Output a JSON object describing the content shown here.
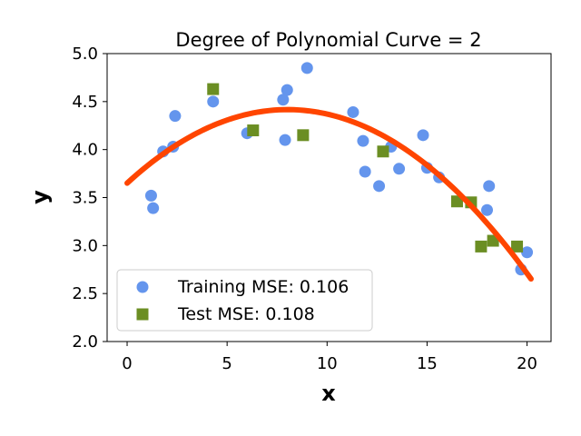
{
  "chart_data": {
    "type": "scatter",
    "title": "Degree of Polynomial Curve = 2",
    "xlabel": "x",
    "ylabel": "y",
    "xlim": [
      -1,
      21.2
    ],
    "ylim": [
      2.0,
      5.0
    ],
    "xticks": [
      "0",
      "5",
      "10",
      "15",
      "20"
    ],
    "yticks": [
      "2.0",
      "2.5",
      "3.0",
      "3.5",
      "4.0",
      "4.5",
      "5.0"
    ],
    "grid": false,
    "legend_position": "lower-left",
    "series": [
      {
        "name": "Training MSE: 0.106",
        "marker": "circle",
        "color": "#6495ed",
        "points": [
          [
            1.2,
            3.52
          ],
          [
            1.3,
            3.39
          ],
          [
            1.8,
            3.98
          ],
          [
            2.3,
            4.03
          ],
          [
            2.4,
            4.35
          ],
          [
            4.3,
            4.5
          ],
          [
            6.0,
            4.17
          ],
          [
            7.8,
            4.52
          ],
          [
            7.9,
            4.1
          ],
          [
            8.0,
            4.62
          ],
          [
            9.0,
            4.85
          ],
          [
            11.3,
            4.39
          ],
          [
            11.8,
            4.09
          ],
          [
            11.9,
            3.77
          ],
          [
            12.6,
            3.62
          ],
          [
            13.2,
            4.03
          ],
          [
            13.6,
            3.8
          ],
          [
            14.8,
            4.15
          ],
          [
            15.0,
            3.81
          ],
          [
            15.6,
            3.71
          ],
          [
            18.0,
            3.37
          ],
          [
            18.1,
            3.62
          ],
          [
            19.7,
            2.75
          ],
          [
            20.0,
            2.93
          ]
        ]
      },
      {
        "name": "Test MSE: 0.108",
        "marker": "square",
        "color": "#6b8e23",
        "points": [
          [
            4.3,
            4.63
          ],
          [
            6.3,
            4.2
          ],
          [
            8.8,
            4.15
          ],
          [
            12.8,
            3.98
          ],
          [
            16.5,
            3.46
          ],
          [
            17.2,
            3.45
          ],
          [
            17.7,
            2.99
          ],
          [
            18.3,
            3.05
          ],
          [
            19.5,
            2.99
          ]
        ]
      },
      {
        "marker": "line",
        "color": "#ff4500",
        "polynomial_degree": 2,
        "x_range": [
          0,
          20.2
        ],
        "coefficients": [
          3.65,
          0.191,
          -0.0119
        ]
      }
    ]
  }
}
